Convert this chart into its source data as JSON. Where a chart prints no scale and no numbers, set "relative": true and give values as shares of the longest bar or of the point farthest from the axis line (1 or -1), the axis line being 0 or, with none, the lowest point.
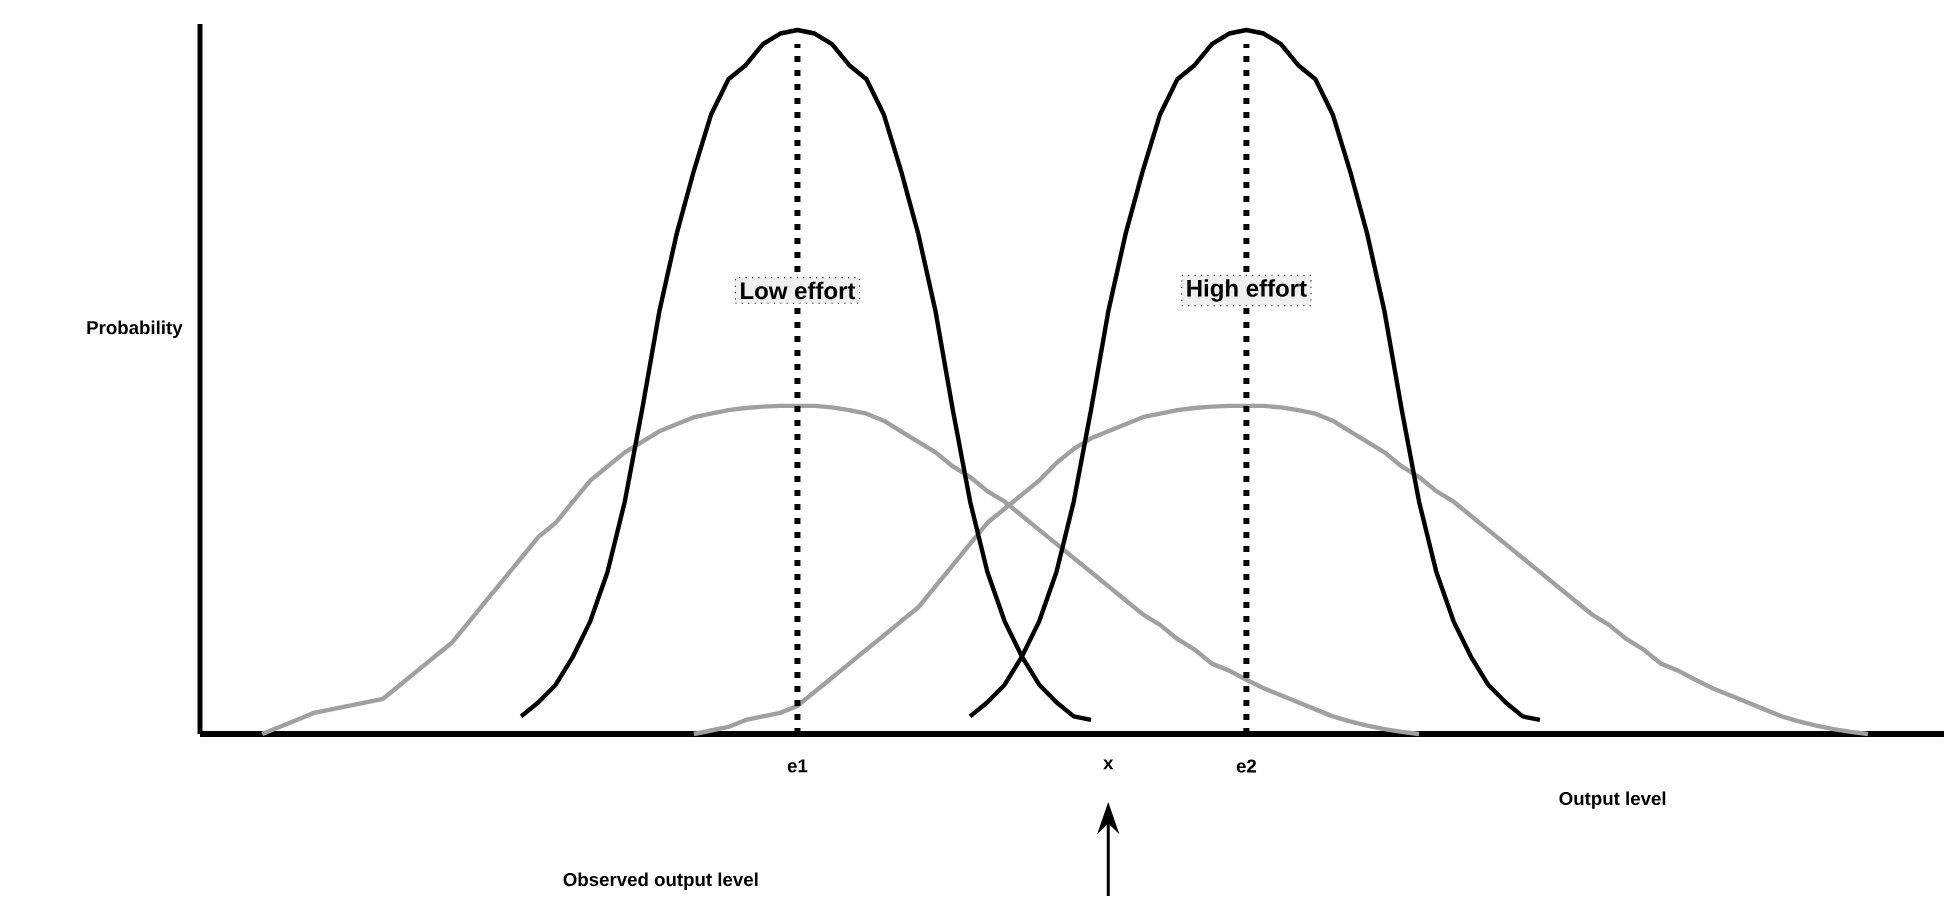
{
  "chart_data": {
    "type": "line",
    "relative": true,
    "xlabel": "Output level",
    "ylabel": "Probability",
    "marker": "none",
    "categories": [
      null,
      null,
      null,
      null,
      null,
      null,
      null,
      null,
      null,
      null,
      null,
      null,
      null,
      null,
      null,
      null,
      null,
      null,
      null,
      null,
      null,
      null,
      null,
      null,
      null,
      null,
      null,
      null,
      null,
      null,
      null,
      null,
      null,
      null,
      "e1",
      null,
      null,
      null,
      null,
      null,
      null,
      null,
      null,
      null,
      null,
      null,
      null,
      null,
      null,
      null,
      null,
      null,
      "x",
      null,
      null,
      null,
      null,
      null,
      null,
      null,
      "e2",
      null,
      null,
      null,
      null,
      null,
      null,
      null,
      null,
      null,
      null,
      null,
      null,
      null,
      null,
      null,
      null,
      null,
      null,
      null,
      null,
      null,
      null,
      null,
      null,
      null,
      null,
      null,
      null,
      null,
      null,
      null,
      null,
      null,
      null,
      null,
      null,
      null,
      null,
      null,
      null
    ],
    "series": [
      {
        "color": "#a0a0a0",
        "values": [
          null,
          null,
          null,
          0,
          0.01,
          0.02,
          0.03,
          0.035,
          0.04,
          0.045,
          0.05,
          0.07,
          0.09,
          0.11,
          0.13,
          0.16,
          0.19,
          0.22,
          0.25,
          0.28,
          0.3,
          0.33,
          0.36,
          0.38,
          0.4,
          0.415,
          0.43,
          0.44,
          0.45,
          0.455,
          0.46,
          0.463,
          0.465,
          0.466,
          0.466,
          0.466,
          0.464,
          0.46,
          0.455,
          0.445,
          0.43,
          0.415,
          0.4,
          0.38,
          0.365,
          0.345,
          0.33,
          0.31,
          0.29,
          0.27,
          0.25,
          0.23,
          0.21,
          0.19,
          0.17,
          0.155,
          0.135,
          0.12,
          0.1,
          0.09,
          0.077,
          0.065,
          0.055,
          0.045,
          0.035,
          0.025,
          0.018,
          0.012,
          0.007,
          0.003,
          0,
          null,
          null,
          null,
          null,
          null,
          null,
          null,
          null,
          null,
          null,
          null,
          null,
          null,
          null,
          null,
          null,
          null,
          null,
          null,
          null,
          null,
          null,
          null,
          null,
          null,
          null,
          null,
          null,
          null,
          null
        ]
      },
      {
        "color": "#a0a0a0",
        "values": [
          null,
          null,
          null,
          null,
          null,
          null,
          null,
          null,
          null,
          null,
          null,
          null,
          null,
          null,
          null,
          null,
          null,
          null,
          null,
          null,
          null,
          null,
          null,
          null,
          null,
          null,
          null,
          null,
          0,
          0.005,
          0.01,
          0.02,
          0.025,
          0.03,
          0.04,
          0.06,
          0.08,
          0.1,
          0.12,
          0.14,
          0.16,
          0.18,
          0.21,
          0.24,
          0.27,
          0.3,
          0.32,
          0.34,
          0.36,
          0.385,
          0.405,
          0.42,
          0.43,
          0.44,
          0.45,
          0.455,
          0.46,
          0.463,
          0.465,
          0.466,
          0.466,
          0.466,
          0.464,
          0.46,
          0.455,
          0.445,
          0.43,
          0.415,
          0.4,
          0.38,
          0.365,
          0.345,
          0.33,
          0.31,
          0.29,
          0.27,
          0.25,
          0.23,
          0.21,
          0.19,
          0.17,
          0.155,
          0.135,
          0.12,
          0.1,
          0.09,
          0.077,
          0.065,
          0.055,
          0.045,
          0.035,
          0.025,
          0.018,
          0.012,
          0.007,
          0.003,
          0,
          null,
          null,
          null,
          null
        ]
      },
      {
        "name": "Low effort",
        "color": "#000000",
        "values": [
          null,
          null,
          null,
          null,
          null,
          null,
          null,
          null,
          null,
          null,
          null,
          null,
          null,
          null,
          null,
          null,
          null,
          null,
          0.025,
          0.045,
          0.07,
          0.11,
          0.16,
          0.23,
          0.33,
          0.46,
          0.6,
          0.71,
          0.8,
          0.88,
          0.93,
          0.95,
          0.98,
          0.995,
          1,
          0.995,
          0.98,
          0.95,
          0.93,
          0.88,
          0.8,
          0.71,
          0.6,
          0.46,
          0.33,
          0.23,
          0.16,
          0.11,
          0.07,
          0.045,
          0.025,
          0.02,
          null,
          null,
          null,
          null,
          null,
          null,
          null,
          null,
          null,
          null,
          null,
          null,
          null,
          null,
          null,
          null,
          null,
          null,
          null,
          null,
          null,
          null,
          null,
          null,
          null,
          null,
          null,
          null,
          null,
          null,
          null,
          null,
          null,
          null,
          null,
          null,
          null,
          null,
          null,
          null,
          null,
          null,
          null,
          null,
          null,
          null,
          null,
          null,
          null
        ]
      },
      {
        "name": "High effort",
        "color": "#000000",
        "values": [
          null,
          null,
          null,
          null,
          null,
          null,
          null,
          null,
          null,
          null,
          null,
          null,
          null,
          null,
          null,
          null,
          null,
          null,
          null,
          null,
          null,
          null,
          null,
          null,
          null,
          null,
          null,
          null,
          null,
          null,
          null,
          null,
          null,
          null,
          null,
          null,
          null,
          null,
          null,
          null,
          null,
          null,
          null,
          null,
          0.025,
          0.045,
          0.07,
          0.11,
          0.16,
          0.23,
          0.33,
          0.46,
          0.6,
          0.71,
          0.8,
          0.88,
          0.93,
          0.95,
          0.98,
          0.995,
          1,
          0.995,
          0.98,
          0.95,
          0.93,
          0.88,
          0.8,
          0.71,
          0.6,
          0.46,
          0.33,
          0.23,
          0.16,
          0.11,
          0.07,
          0.045,
          0.025,
          0.02,
          null,
          null,
          null,
          null,
          null,
          null,
          null,
          null,
          null,
          null,
          null,
          null,
          null,
          null,
          null,
          null,
          null,
          null,
          null,
          null,
          null,
          null,
          null
        ]
      }
    ],
    "ref_lines": [
      {
        "axis": "x",
        "value": "e1",
        "line_style": "dotted",
        "color": "#000000"
      },
      {
        "axis": "x",
        "value": "e2",
        "line_style": "dotted",
        "color": "#000000"
      }
    ],
    "annotations": [
      "Observed output level"
    ]
  }
}
